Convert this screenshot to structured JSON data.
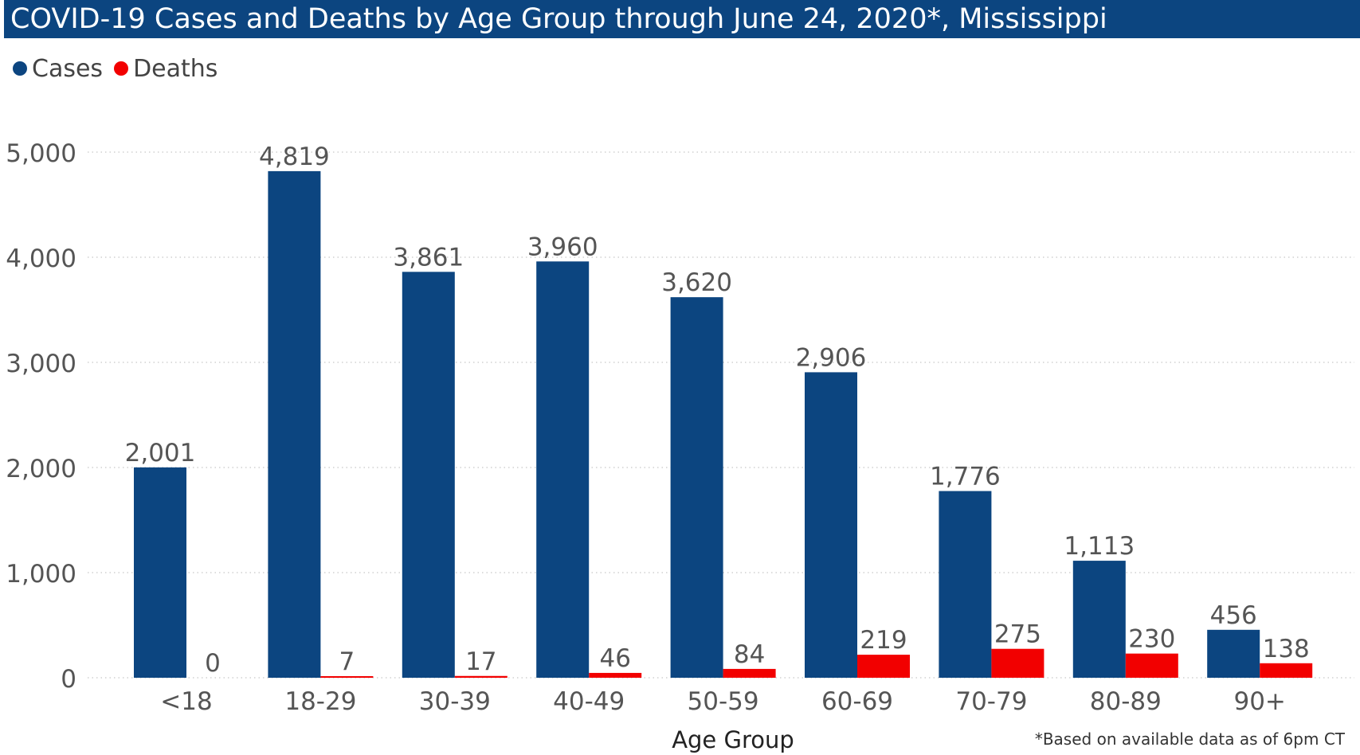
{
  "chart_data": {
    "type": "bar",
    "title": "COVID-19 Cases and Deaths by Age Group through June 24, 2020*, Mississippi",
    "xlabel": "Age Group",
    "ylabel": "",
    "categories": [
      "<18",
      "18-29",
      "30-39",
      "40-49",
      "50-59",
      "60-69",
      "70-79",
      "80-89",
      "90+"
    ],
    "series": [
      {
        "name": "Cases",
        "color": "#0c4580",
        "values": [
          2001,
          4819,
          3861,
          3960,
          3620,
          2906,
          1776,
          1113,
          456
        ]
      },
      {
        "name": "Deaths",
        "color": "#f20000",
        "values": [
          0,
          7,
          17,
          46,
          84,
          219,
          275,
          230,
          138
        ]
      }
    ],
    "ylim": [
      0,
      5000
    ],
    "yticks": [
      0,
      1000,
      2000,
      3000,
      4000,
      5000
    ],
    "ytick_labels": [
      "0",
      "1,000",
      "2,000",
      "3,000",
      "4,000",
      "5,000"
    ],
    "grid": "horizontal dotted",
    "legend_position": "top-left",
    "footnote": "*Based on available data as of 6pm CT"
  }
}
